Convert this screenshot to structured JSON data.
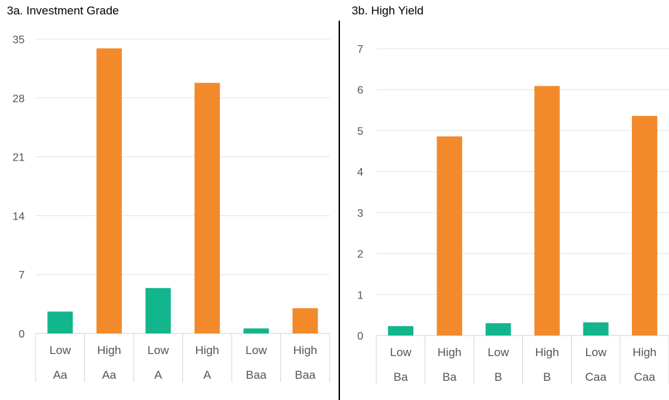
{
  "chart_data": [
    {
      "type": "bar",
      "title": "3a. Investment Grade",
      "categories": [
        [
          "Low",
          "Aa"
        ],
        [
          "High",
          "Aa"
        ],
        [
          "Low",
          "A"
        ],
        [
          "High",
          "A"
        ],
        [
          "Low",
          "Baa"
        ],
        [
          "High",
          "Baa"
        ]
      ],
      "values": [
        2.6,
        33.9,
        5.4,
        29.8,
        0.6,
        3.0
      ],
      "bar_colors": [
        "#13b58c",
        "#f28a2c",
        "#13b58c",
        "#f28a2c",
        "#13b58c",
        "#f28a2c"
      ],
      "ylim": [
        0,
        35
      ],
      "yticks": [
        "0",
        "7",
        "14",
        "21",
        "28",
        "35"
      ],
      "grid": true
    },
    {
      "type": "bar",
      "title": "3b. High Yield",
      "categories": [
        [
          "Low",
          "Ba"
        ],
        [
          "High",
          "Ba"
        ],
        [
          "Low",
          "B"
        ],
        [
          "High",
          "B"
        ],
        [
          "Low",
          "Caa"
        ],
        [
          "High",
          "Caa"
        ]
      ],
      "values": [
        0.23,
        4.86,
        0.3,
        6.09,
        0.32,
        5.36
      ],
      "bar_colors": [
        "#13b58c",
        "#f28a2c",
        "#13b58c",
        "#f28a2c",
        "#13b58c",
        "#f28a2c"
      ],
      "ylim": [
        0,
        7
      ],
      "yticks": [
        "0",
        "1",
        "2",
        "3",
        "4",
        "5",
        "6",
        "7"
      ],
      "grid": true
    }
  ]
}
